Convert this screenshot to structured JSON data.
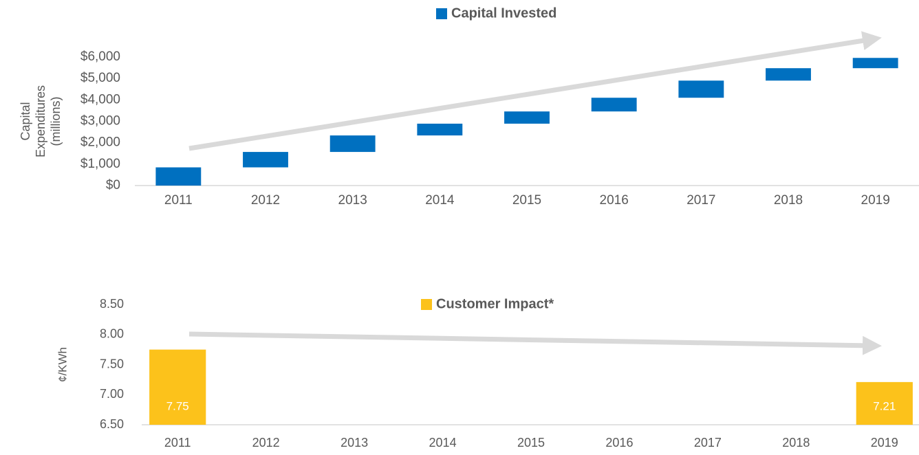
{
  "chart_data": [
    {
      "type": "waterfall",
      "series": [
        {
          "name": "Capital Invested",
          "color": "#0070c0",
          "values": [
            850,
            720,
            770,
            550,
            570,
            640,
            800,
            580,
            480
          ]
        }
      ],
      "categories": [
        "2011",
        "2012",
        "2013",
        "2014",
        "2015",
        "2016",
        "2017",
        "2018",
        "2019"
      ],
      "y_label": [
        "Capital",
        "Expenditures",
        "(millions)"
      ],
      "ylim": [
        0,
        6000
      ],
      "yticks": [
        {
          "value": 0,
          "label": "$0"
        },
        {
          "value": 1000,
          "label": "$1,000"
        },
        {
          "value": 2000,
          "label": "$2,000"
        },
        {
          "value": 3000,
          "label": "$3,000"
        },
        {
          "value": 4000,
          "label": "$4,000"
        },
        {
          "value": 5000,
          "label": "$5,000"
        },
        {
          "value": 6000,
          "label": "$6,000"
        }
      ]
    },
    {
      "type": "bar",
      "series": [
        {
          "name": "Customer Impact*",
          "color": "#fcc21b",
          "values": [
            7.75,
            null,
            null,
            null,
            null,
            null,
            null,
            null,
            7.21
          ]
        }
      ],
      "categories": [
        "2011",
        "2012",
        "2013",
        "2014",
        "2015",
        "2016",
        "2017",
        "2018",
        "2019"
      ],
      "y_label": [
        "¢/KWh"
      ],
      "ylim": [
        6.5,
        8.5
      ],
      "yticks": [
        {
          "value": 6.5,
          "label": "6.50"
        },
        {
          "value": 7,
          "label": "7.00"
        },
        {
          "value": 7.5,
          "label": "7.50"
        },
        {
          "value": 8,
          "label": "8.00"
        },
        {
          "value": 8.5,
          "label": "8.50"
        }
      ]
    }
  ]
}
